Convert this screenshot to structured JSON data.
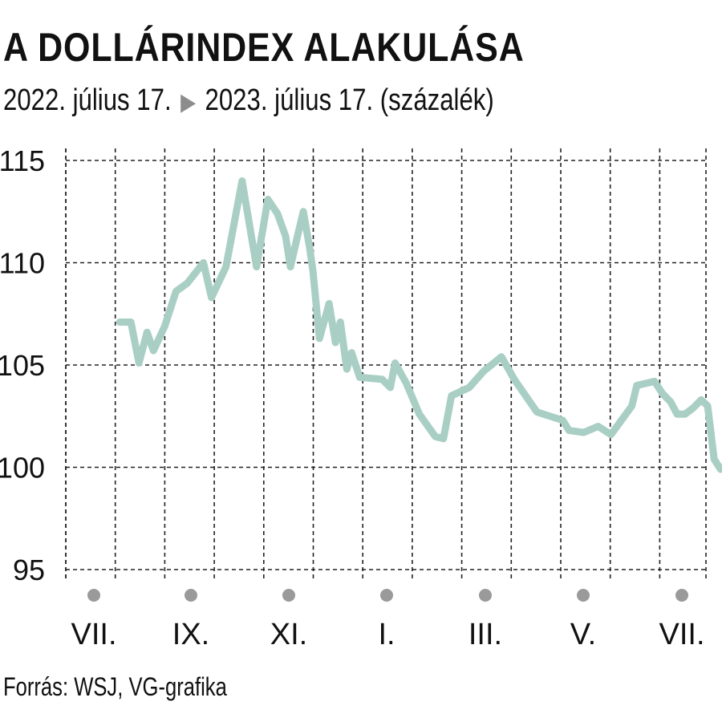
{
  "header": {
    "title": "A DOLLÁRINDEX ALAKULÁSA",
    "subtitle_start": "2022. július 17.",
    "subtitle_end": "2023. július 17. (százalék)"
  },
  "footer": {
    "source": "Forrás: WSJ, VG-grafika"
  },
  "colors": {
    "line": "#a9cfc4",
    "grid": "#222222",
    "dot": "#9a9a9a",
    "text": "#111111"
  },
  "chart_data": {
    "type": "line",
    "title": "A DOLLÁRINDEX ALAKULÁSA",
    "xlabel": "",
    "ylabel": "",
    "ylim": [
      95,
      115
    ],
    "y_ticks": [
      95,
      100,
      105,
      110,
      115
    ],
    "x_ticks": [
      "VII.",
      "IX.",
      "XI.",
      "I.",
      "III.",
      "V.",
      "VII."
    ],
    "grid": true,
    "legend": "none",
    "series": [
      {
        "values": [
          {
            "x": "2022-07-17",
            "y": 107.1
          },
          {
            "x": "2022-07-24",
            "y": 107.1
          },
          {
            "x": "2022-07-29",
            "y": 105.1
          },
          {
            "x": "2022-08-03",
            "y": 106.6
          },
          {
            "x": "2022-08-07",
            "y": 105.7
          },
          {
            "x": "2022-08-14",
            "y": 106.9
          },
          {
            "x": "2022-08-21",
            "y": 108.6
          },
          {
            "x": "2022-08-28",
            "y": 109.0
          },
          {
            "x": "2022-09-07",
            "y": 110.0
          },
          {
            "x": "2022-09-12",
            "y": 108.3
          },
          {
            "x": "2022-09-21",
            "y": 109.8
          },
          {
            "x": "2022-10-01",
            "y": 114.0
          },
          {
            "x": "2022-10-10",
            "y": 109.8
          },
          {
            "x": "2022-10-17",
            "y": 113.1
          },
          {
            "x": "2022-10-23",
            "y": 112.4
          },
          {
            "x": "2022-10-28",
            "y": 111.3
          },
          {
            "x": "2022-10-31",
            "y": 109.8
          },
          {
            "x": "2022-11-05",
            "y": 111.5
          },
          {
            "x": "2022-11-08",
            "y": 112.5
          },
          {
            "x": "2022-11-12",
            "y": 110.7
          },
          {
            "x": "2022-11-14",
            "y": 109.6
          },
          {
            "x": "2022-11-18",
            "y": 106.3
          },
          {
            "x": "2022-11-24",
            "y": 108.0
          },
          {
            "x": "2022-11-28",
            "y": 106.1
          },
          {
            "x": "2022-12-01",
            "y": 107.1
          },
          {
            "x": "2022-12-05",
            "y": 104.8
          },
          {
            "x": "2022-12-08",
            "y": 105.6
          },
          {
            "x": "2022-12-13",
            "y": 104.4
          },
          {
            "x": "2022-12-27",
            "y": 104.3
          },
          {
            "x": "2023-01-01",
            "y": 103.9
          },
          {
            "x": "2023-01-04",
            "y": 105.1
          },
          {
            "x": "2023-01-11",
            "y": 104.1
          },
          {
            "x": "2023-01-19",
            "y": 102.6
          },
          {
            "x": "2023-01-29",
            "y": 101.5
          },
          {
            "x": "2023-02-03",
            "y": 101.4
          },
          {
            "x": "2023-02-08",
            "y": 103.5
          },
          {
            "x": "2023-02-19",
            "y": 103.9
          },
          {
            "x": "2023-02-28",
            "y": 104.7
          },
          {
            "x": "2023-03-11",
            "y": 105.4
          },
          {
            "x": "2023-03-19",
            "y": 104.3
          },
          {
            "x": "2023-04-02",
            "y": 102.7
          },
          {
            "x": "2023-04-18",
            "y": 102.3
          },
          {
            "x": "2023-04-22",
            "y": 101.8
          },
          {
            "x": "2023-05-01",
            "y": 101.7
          },
          {
            "x": "2023-05-10",
            "y": 102.0
          },
          {
            "x": "2023-05-18",
            "y": 101.6
          },
          {
            "x": "2023-05-31",
            "y": 103.0
          },
          {
            "x": "2023-06-03",
            "y": 104.0
          },
          {
            "x": "2023-06-14",
            "y": 104.2
          },
          {
            "x": "2023-06-19",
            "y": 103.6
          },
          {
            "x": "2023-06-24",
            "y": 103.2
          },
          {
            "x": "2023-06-28",
            "y": 102.6
          },
          {
            "x": "2023-07-03",
            "y": 102.6
          },
          {
            "x": "2023-07-08",
            "y": 102.9
          },
          {
            "x": "2023-07-13",
            "y": 103.3
          },
          {
            "x": "2023-07-17",
            "y": 103.0
          },
          {
            "x": "2023-07-21",
            "y": 100.4
          },
          {
            "x": "2023-07-25",
            "y": 99.9
          }
        ]
      }
    ]
  }
}
